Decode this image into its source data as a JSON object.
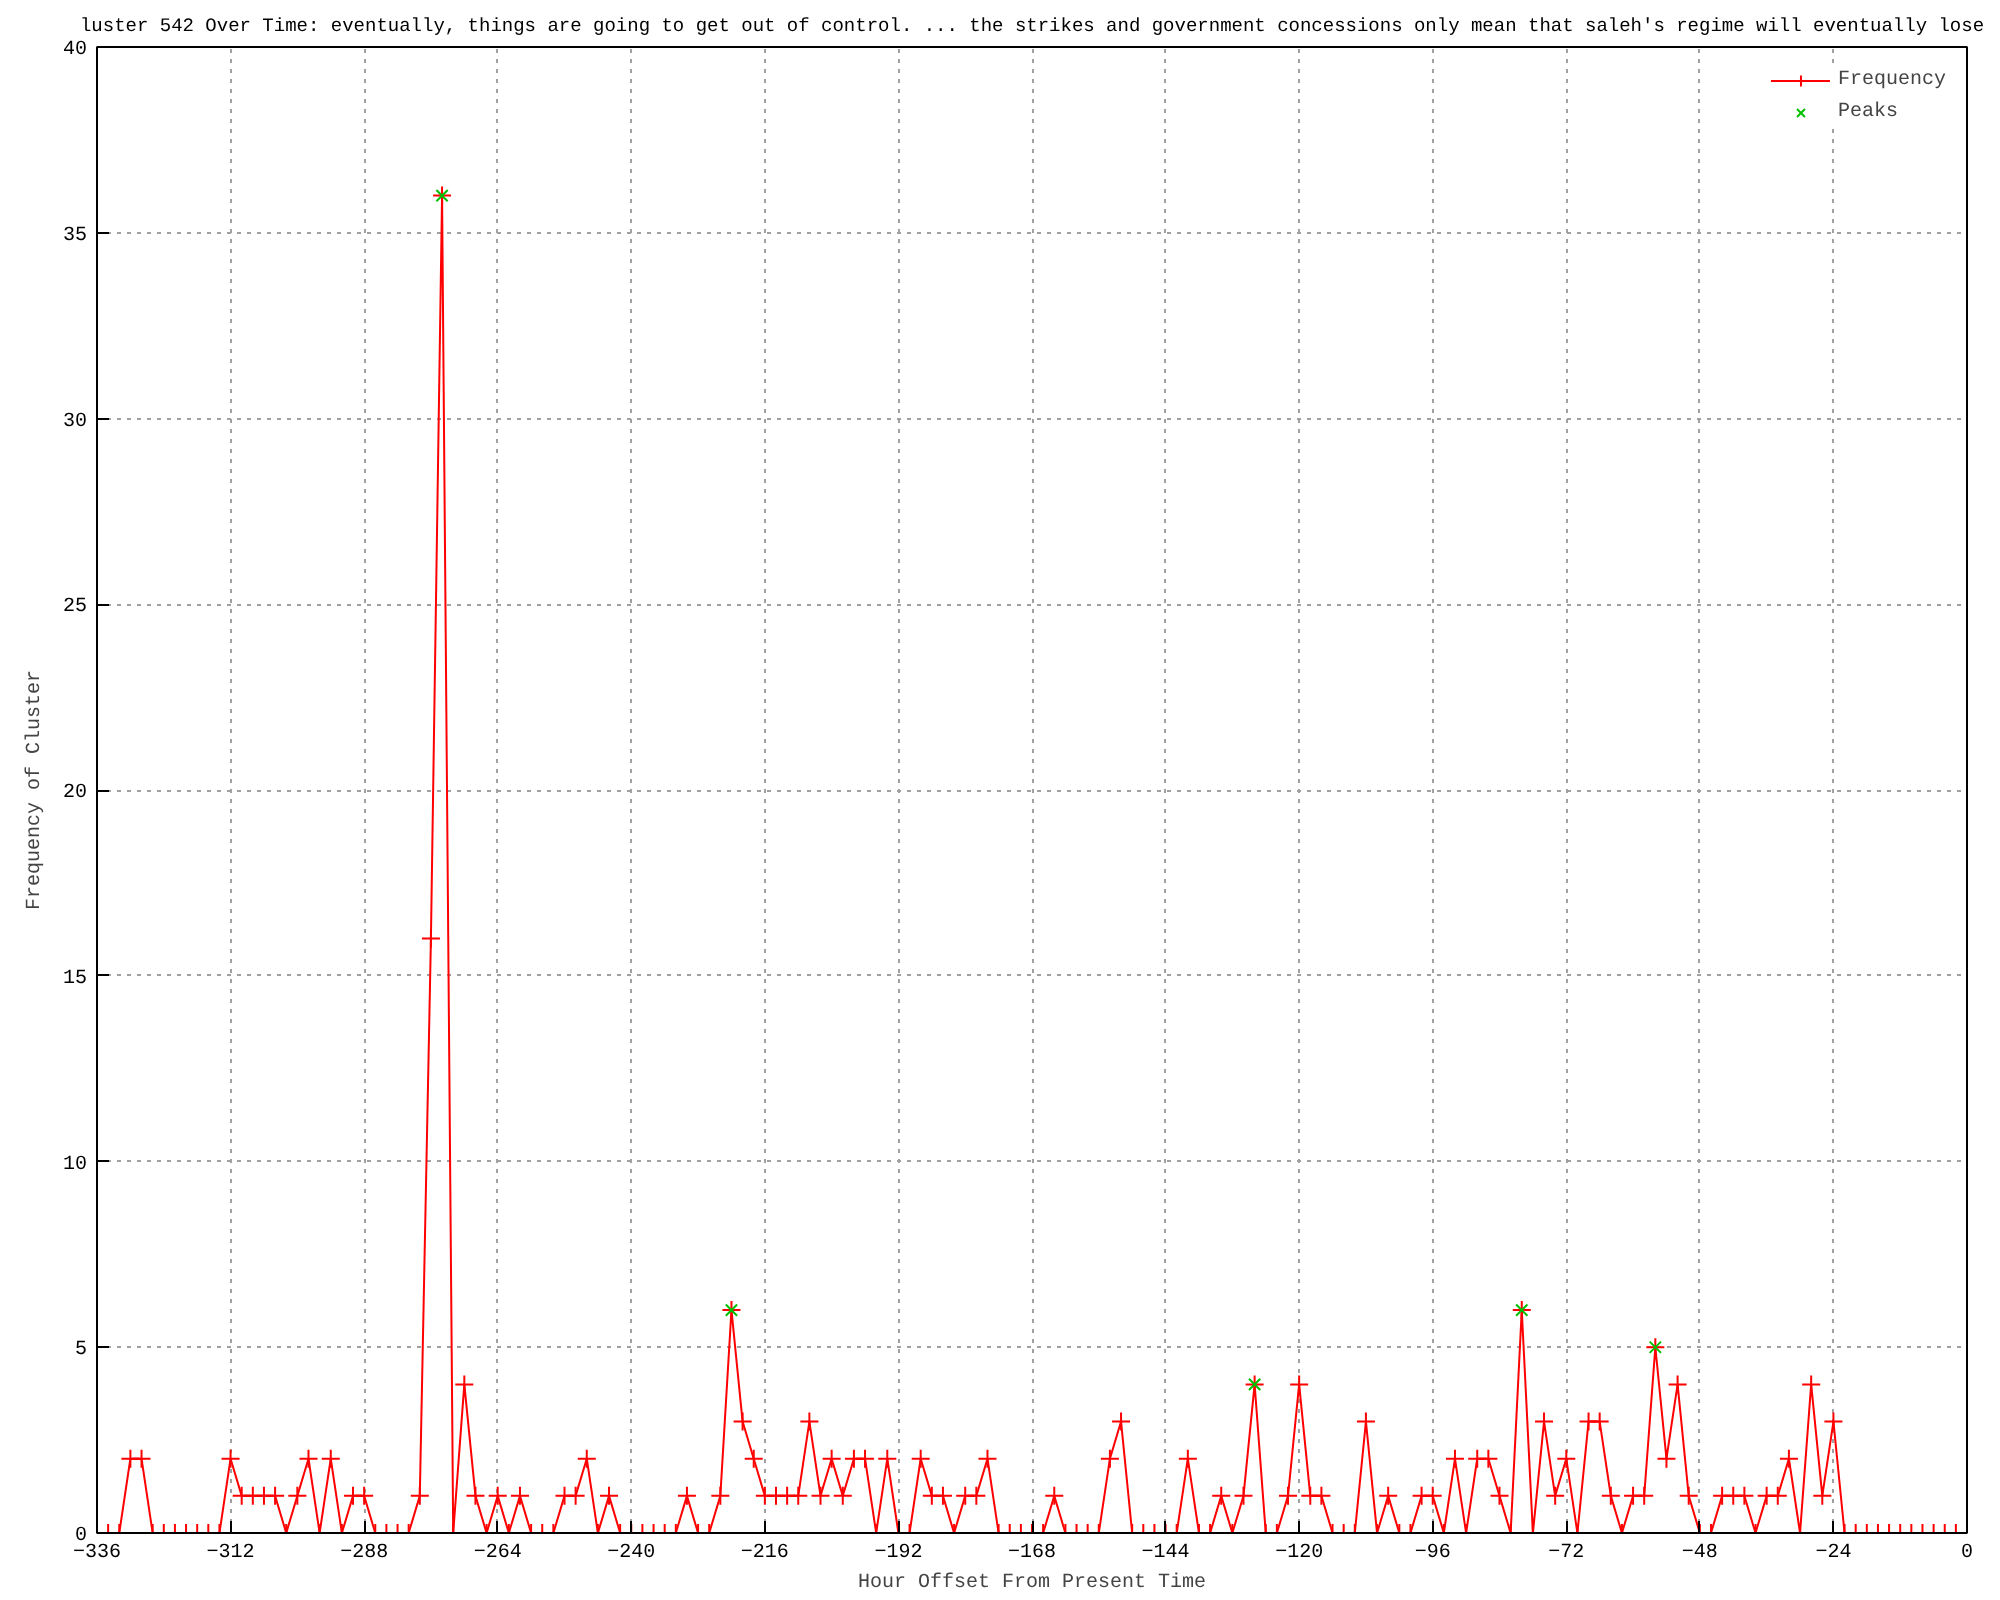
{
  "chart_data": {
    "type": "line",
    "title": "luster 542 Over Time: eventually, things are going to get out of control. ... the strikes and government concessions only mean that saleh's regime will eventually lose",
    "xlabel": "Hour Offset From Present Time",
    "ylabel": "Frequency of Cluster",
    "xlim": [
      -336,
      0
    ],
    "ylim": [
      0,
      40
    ],
    "xticks": [
      -336,
      -312,
      -288,
      -264,
      -240,
      -216,
      -192,
      -168,
      -144,
      -120,
      -96,
      -72,
      -48,
      -24,
      0
    ],
    "yticks": [
      0,
      5,
      10,
      15,
      20,
      25,
      30,
      35,
      40
    ],
    "grid": true,
    "legend": "top right",
    "line_style": "solid",
    "x": [
      -336,
      -334,
      -332,
      -330,
      -328,
      -326,
      -324,
      -322,
      -320,
      -318,
      -316,
      -314,
      -312,
      -310,
      -308,
      -306,
      -304,
      -302,
      -300,
      -298,
      -296,
      -294,
      -292,
      -290,
      -288,
      -286,
      -284,
      -282,
      -280,
      -278,
      -276,
      -274,
      -272,
      -270,
      -268,
      -266,
      -264,
      -262,
      -260,
      -258,
      -256,
      -254,
      -252,
      -250,
      -248,
      -246,
      -244,
      -242,
      -240,
      -238,
      -236,
      -234,
      -232,
      -230,
      -228,
      -226,
      -224,
      -222,
      -220,
      -218,
      -216,
      -214,
      -212,
      -210,
      -208,
      -206,
      -204,
      -202,
      -200,
      -198,
      -196,
      -194,
      -192,
      -190,
      -188,
      -186,
      -184,
      -182,
      -180,
      -178,
      -176,
      -174,
      -172,
      -170,
      -168,
      -166,
      -164,
      -162,
      -160,
      -158,
      -156,
      -154,
      -152,
      -150,
      -148,
      -146,
      -144,
      -142,
      -140,
      -138,
      -136,
      -134,
      -132,
      -130,
      -128,
      -126,
      -124,
      -122,
      -120,
      -118,
      -116,
      -114,
      -112,
      -110,
      -108,
      -106,
      -104,
      -102,
      -100,
      -98,
      -96,
      -94,
      -92,
      -90,
      -88,
      -86,
      -84,
      -82,
      -80,
      -78,
      -76,
      -74,
      -72,
      -70,
      -68,
      -66,
      -64,
      -62,
      -60,
      -58,
      -56,
      -54,
      -52,
      -50,
      -48,
      -46,
      -44,
      -42,
      -40,
      -38,
      -36,
      -34,
      -32,
      -30,
      -28,
      -26,
      -24,
      -22,
      -20,
      -18,
      -16,
      -14,
      -12,
      -10,
      -8,
      -6,
      -4,
      -2,
      0
    ],
    "series": [
      {
        "name": "Frequency",
        "color": "#ff0000",
        "marker": "cross",
        "values": [
          0,
          0,
          0,
          2,
          2,
          0,
          0,
          0,
          0,
          0,
          0,
          0,
          2,
          1,
          1,
          1,
          1,
          0,
          1,
          2,
          0,
          2,
          0,
          1,
          1,
          0,
          0,
          0,
          0,
          1,
          16,
          36,
          0,
          4,
          1,
          0,
          1,
          0,
          1,
          0,
          0,
          0,
          1,
          1,
          2,
          0,
          1,
          0,
          0,
          0,
          0,
          0,
          0,
          1,
          0,
          0,
          1,
          6,
          3,
          2,
          1,
          1,
          1,
          1,
          3,
          1,
          2,
          1,
          2,
          2,
          0,
          2,
          0,
          0,
          2,
          1,
          1,
          0,
          1,
          1,
          2,
          0,
          0,
          0,
          0,
          0,
          1,
          0,
          0,
          0,
          0,
          2,
          3,
          0,
          0,
          0,
          0,
          0,
          2,
          0,
          0,
          1,
          0,
          1,
          4,
          0,
          0,
          1,
          4,
          1,
          1,
          0,
          0,
          0,
          3,
          0,
          1,
          0,
          0,
          1,
          1,
          0,
          2,
          0,
          2,
          2,
          1,
          0,
          6,
          0,
          3,
          1,
          2,
          0,
          3,
          3,
          1,
          0,
          1,
          1,
          5,
          2,
          4,
          1,
          0,
          0,
          1,
          1,
          1,
          0,
          1,
          1,
          2,
          0,
          4,
          1,
          3,
          0,
          0,
          0,
          0,
          0,
          0,
          0,
          0,
          0,
          0,
          0,
          0
        ]
      },
      {
        "name": "Peaks",
        "type": "scatter",
        "color": "#00c000",
        "marker": "x",
        "x": [
          -274,
          -222,
          -128,
          -80,
          -56
        ],
        "values": [
          36,
          6,
          4,
          6,
          5
        ]
      }
    ]
  }
}
